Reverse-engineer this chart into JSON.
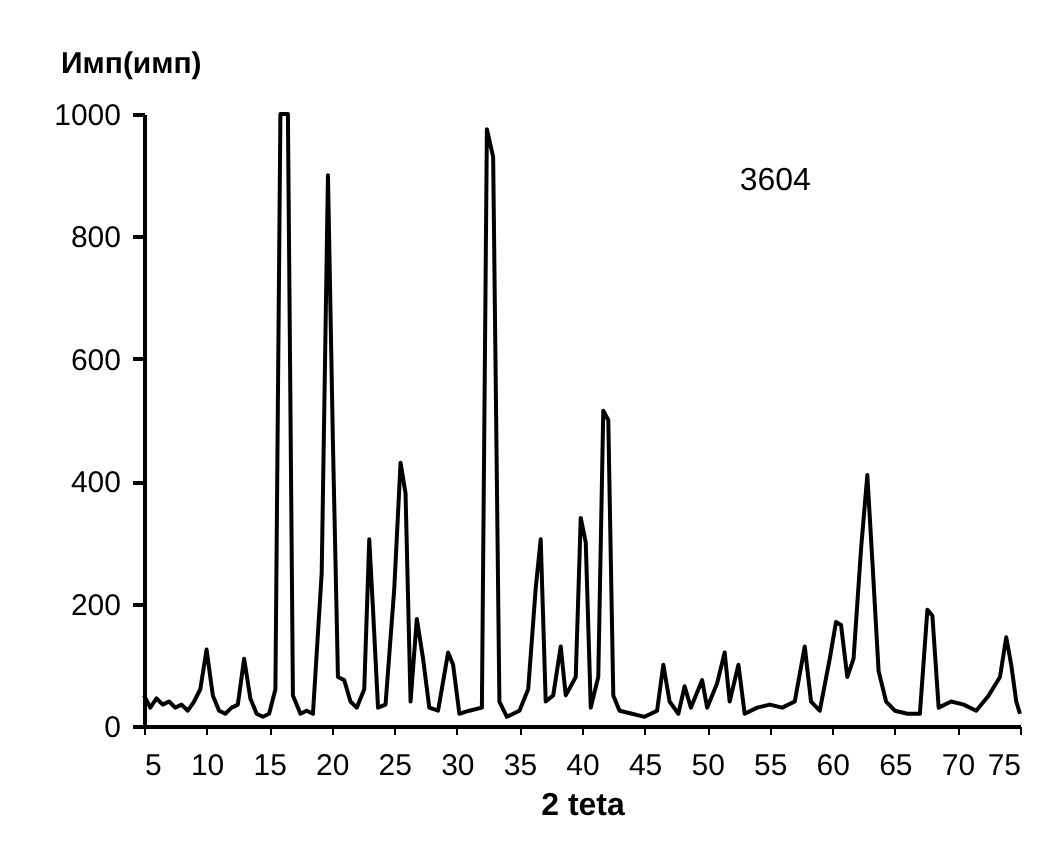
{
  "chart_data": {
    "type": "line",
    "xlabel": "2 teta",
    "ylabel": "Имп(имп)",
    "annotations": [
      "3604"
    ],
    "xlim": [
      5,
      75
    ],
    "xticks": [
      5,
      10,
      15,
      20,
      25,
      30,
      35,
      40,
      45,
      50,
      55,
      60,
      65,
      70,
      75
    ],
    "ylim": [
      0,
      1000
    ],
    "yticks": [
      0,
      200,
      400,
      600,
      800,
      1000
    ],
    "grid": false,
    "marker": "none",
    "line_style": "solid",
    "x": [
      5,
      5.5,
      6,
      6.5,
      7,
      7.5,
      8,
      8.5,
      9,
      9.5,
      10,
      10.5,
      11,
      11.5,
      12,
      12.5,
      13,
      13.5,
      14,
      14.5,
      15,
      15.5,
      15.9,
      16.5,
      16.9,
      17.5,
      18,
      18.5,
      19.2,
      19.7,
      20.1,
      20.5,
      21,
      21.5,
      22,
      22.6,
      23,
      23.3,
      23.7,
      24.3,
      25,
      25.5,
      25.9,
      26.3,
      26.8,
      27.3,
      27.8,
      28.5,
      29.3,
      29.7,
      30.2,
      31,
      32,
      32.4,
      32.9,
      33.4,
      34,
      35,
      35.7,
      36.3,
      36.7,
      37.1,
      37.7,
      38.3,
      38.7,
      39.5,
      39.9,
      40.3,
      40.7,
      41.3,
      41.7,
      42.1,
      42.5,
      43,
      44,
      45,
      46,
      46.5,
      47,
      47.7,
      48.2,
      48.7,
      49.6,
      50,
      50.8,
      51.4,
      51.8,
      52.5,
      53,
      54,
      55,
      56,
      57,
      57.8,
      58.3,
      59,
      59.8,
      60.3,
      60.7,
      61.2,
      61.7,
      62.3,
      62.8,
      63.2,
      63.7,
      64.3,
      65,
      66,
      67,
      67.6,
      68,
      68.5,
      69.5,
      70.5,
      71.5,
      72.5,
      73.4,
      73.9,
      74.3,
      74.7,
      75
    ],
    "series": [
      {
        "color": "#000000",
        "values": [
          50,
          30,
          45,
          35,
          40,
          30,
          35,
          25,
          40,
          60,
          125,
          50,
          25,
          20,
          30,
          35,
          110,
          45,
          20,
          15,
          20,
          60,
          1000,
          1000,
          50,
          20,
          25,
          20,
          250,
          900,
          460,
          80,
          75,
          40,
          30,
          60,
          305,
          190,
          30,
          35,
          225,
          430,
          380,
          40,
          175,
          110,
          30,
          25,
          120,
          100,
          20,
          25,
          30,
          975,
          930,
          40,
          15,
          25,
          60,
          225,
          305,
          40,
          50,
          130,
          50,
          80,
          340,
          300,
          30,
          80,
          515,
          500,
          50,
          25,
          20,
          15,
          25,
          100,
          40,
          20,
          65,
          30,
          75,
          30,
          70,
          120,
          40,
          100,
          20,
          30,
          35,
          30,
          40,
          130,
          40,
          25,
          110,
          170,
          165,
          80,
          110,
          290,
          410,
          270,
          90,
          40,
          25,
          20,
          20,
          190,
          180,
          30,
          40,
          35,
          25,
          50,
          80,
          145,
          100,
          40,
          20
        ]
      }
    ]
  }
}
